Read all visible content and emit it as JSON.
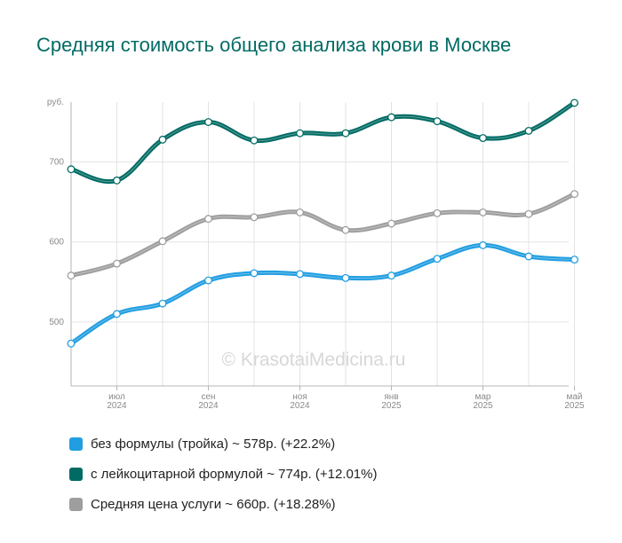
{
  "title": "Средняя стоимость общего анализа крови в Москве",
  "watermark": "© KrasotaiMedicina.ru",
  "chart_data": {
    "type": "line",
    "title": "Средняя стоимость общего анализа крови в Москве",
    "ylabel": "руб.",
    "ylim": [
      420,
      775
    ],
    "yticks": [
      500,
      600,
      700
    ],
    "x": [
      "2024-06",
      "2024-07",
      "2024-08",
      "2024-09",
      "2024-10",
      "2024-11",
      "2024-12",
      "2025-01",
      "2025-02",
      "2025-03",
      "2025-04",
      "2025-05"
    ],
    "xtick_labels": [
      {
        "index": 1,
        "lines": [
          "июл",
          "2024"
        ]
      },
      {
        "index": 3,
        "lines": [
          "сен",
          "2024"
        ]
      },
      {
        "index": 5,
        "lines": [
          "ноя",
          "2024"
        ]
      },
      {
        "index": 7,
        "lines": [
          "янв",
          "2025"
        ]
      },
      {
        "index": 9,
        "lines": [
          "мар",
          "2025"
        ]
      },
      {
        "index": 11,
        "lines": [
          "май",
          "2025"
        ]
      }
    ],
    "grid": true,
    "legend_position": "bottom",
    "series": [
      {
        "name": "без формулы (тройка)",
        "legend": "без формулы (тройка) ~ 578р. (+22.2%)",
        "color": "#219ee1",
        "values": [
          473,
          510,
          523,
          552,
          561,
          560,
          555,
          558,
          579,
          596,
          582,
          578
        ]
      },
      {
        "name": "с лейкоцитарной формулой",
        "legend": "с лейкоцитарной формулой ~ 774р. (+12.01%)",
        "color": "#006b63",
        "values": [
          691,
          677,
          728,
          750,
          727,
          736,
          736,
          756,
          751,
          730,
          739,
          774
        ]
      },
      {
        "name": "Средняя цена услуги",
        "legend": "Средняя цена услуги ~ 660р. (+18.28%)",
        "color": "#9e9e9e",
        "values": [
          558,
          573,
          601,
          629,
          631,
          637,
          615,
          623,
          636,
          637,
          635,
          660
        ]
      }
    ]
  }
}
